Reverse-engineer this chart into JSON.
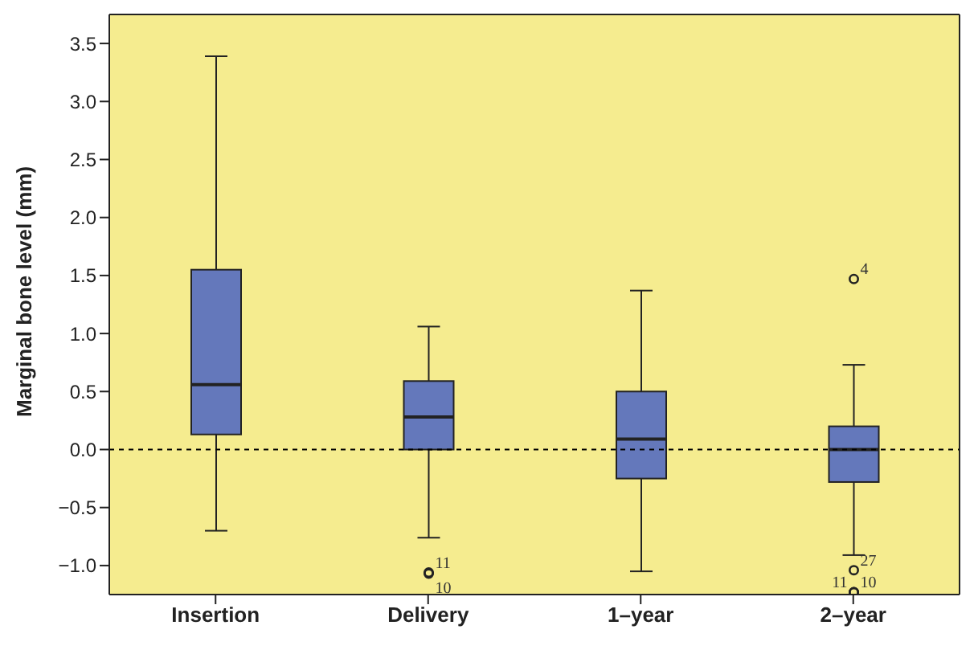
{
  "chart_data": {
    "type": "box",
    "ylabel": "Marginal bone level (mm)",
    "categories": [
      "Insertion",
      "Delivery",
      "1–year",
      "2–year"
    ],
    "color": "#6478bb",
    "boxes": [
      {
        "low": -0.7,
        "q1": 0.13,
        "median": 0.56,
        "q3": 1.55,
        "high": 3.39
      },
      {
        "low": -0.76,
        "q1": 0,
        "median": 0.28,
        "q3": 0.59,
        "high": 1.06,
        "outliers": [
          -1.06,
          -1.07
        ]
      },
      {
        "low": -1.05,
        "q1": -0.25,
        "median": 0.09,
        "q3": 0.5,
        "high": 1.37
      },
      {
        "low": -0.91,
        "q1": -0.28,
        "median": 0,
        "q3": 0.2,
        "high": 0.73,
        "outliers": [
          1.47,
          -1.04,
          -1.23,
          -1.23
        ]
      }
    ],
    "ylim": [
      -1.25,
      3.75
    ],
    "yticks": [
      {
        "value": -1,
        "label": "−1.0"
      },
      {
        "value": -0.5,
        "label": "−0.5"
      },
      {
        "value": 0,
        "label": "0.0"
      },
      {
        "value": 0.5,
        "label": "0.5"
      },
      {
        "value": 1,
        "label": "1.0"
      },
      {
        "value": 1.5,
        "label": "1.5"
      },
      {
        "value": 2,
        "label": "2.0"
      },
      {
        "value": 2.5,
        "label": "2.5"
      },
      {
        "value": 3,
        "label": "3.0"
      },
      {
        "value": 3.5,
        "label": "3.5"
      }
    ],
    "ref_lines": [
      {
        "axis": "y",
        "value": 0,
        "line_style": "dashed",
        "color": "#000000"
      }
    ],
    "grid": false,
    "legend": false,
    "annotations": [
      "11",
      "10",
      "4",
      "27",
      "11",
      "10"
    ]
  }
}
